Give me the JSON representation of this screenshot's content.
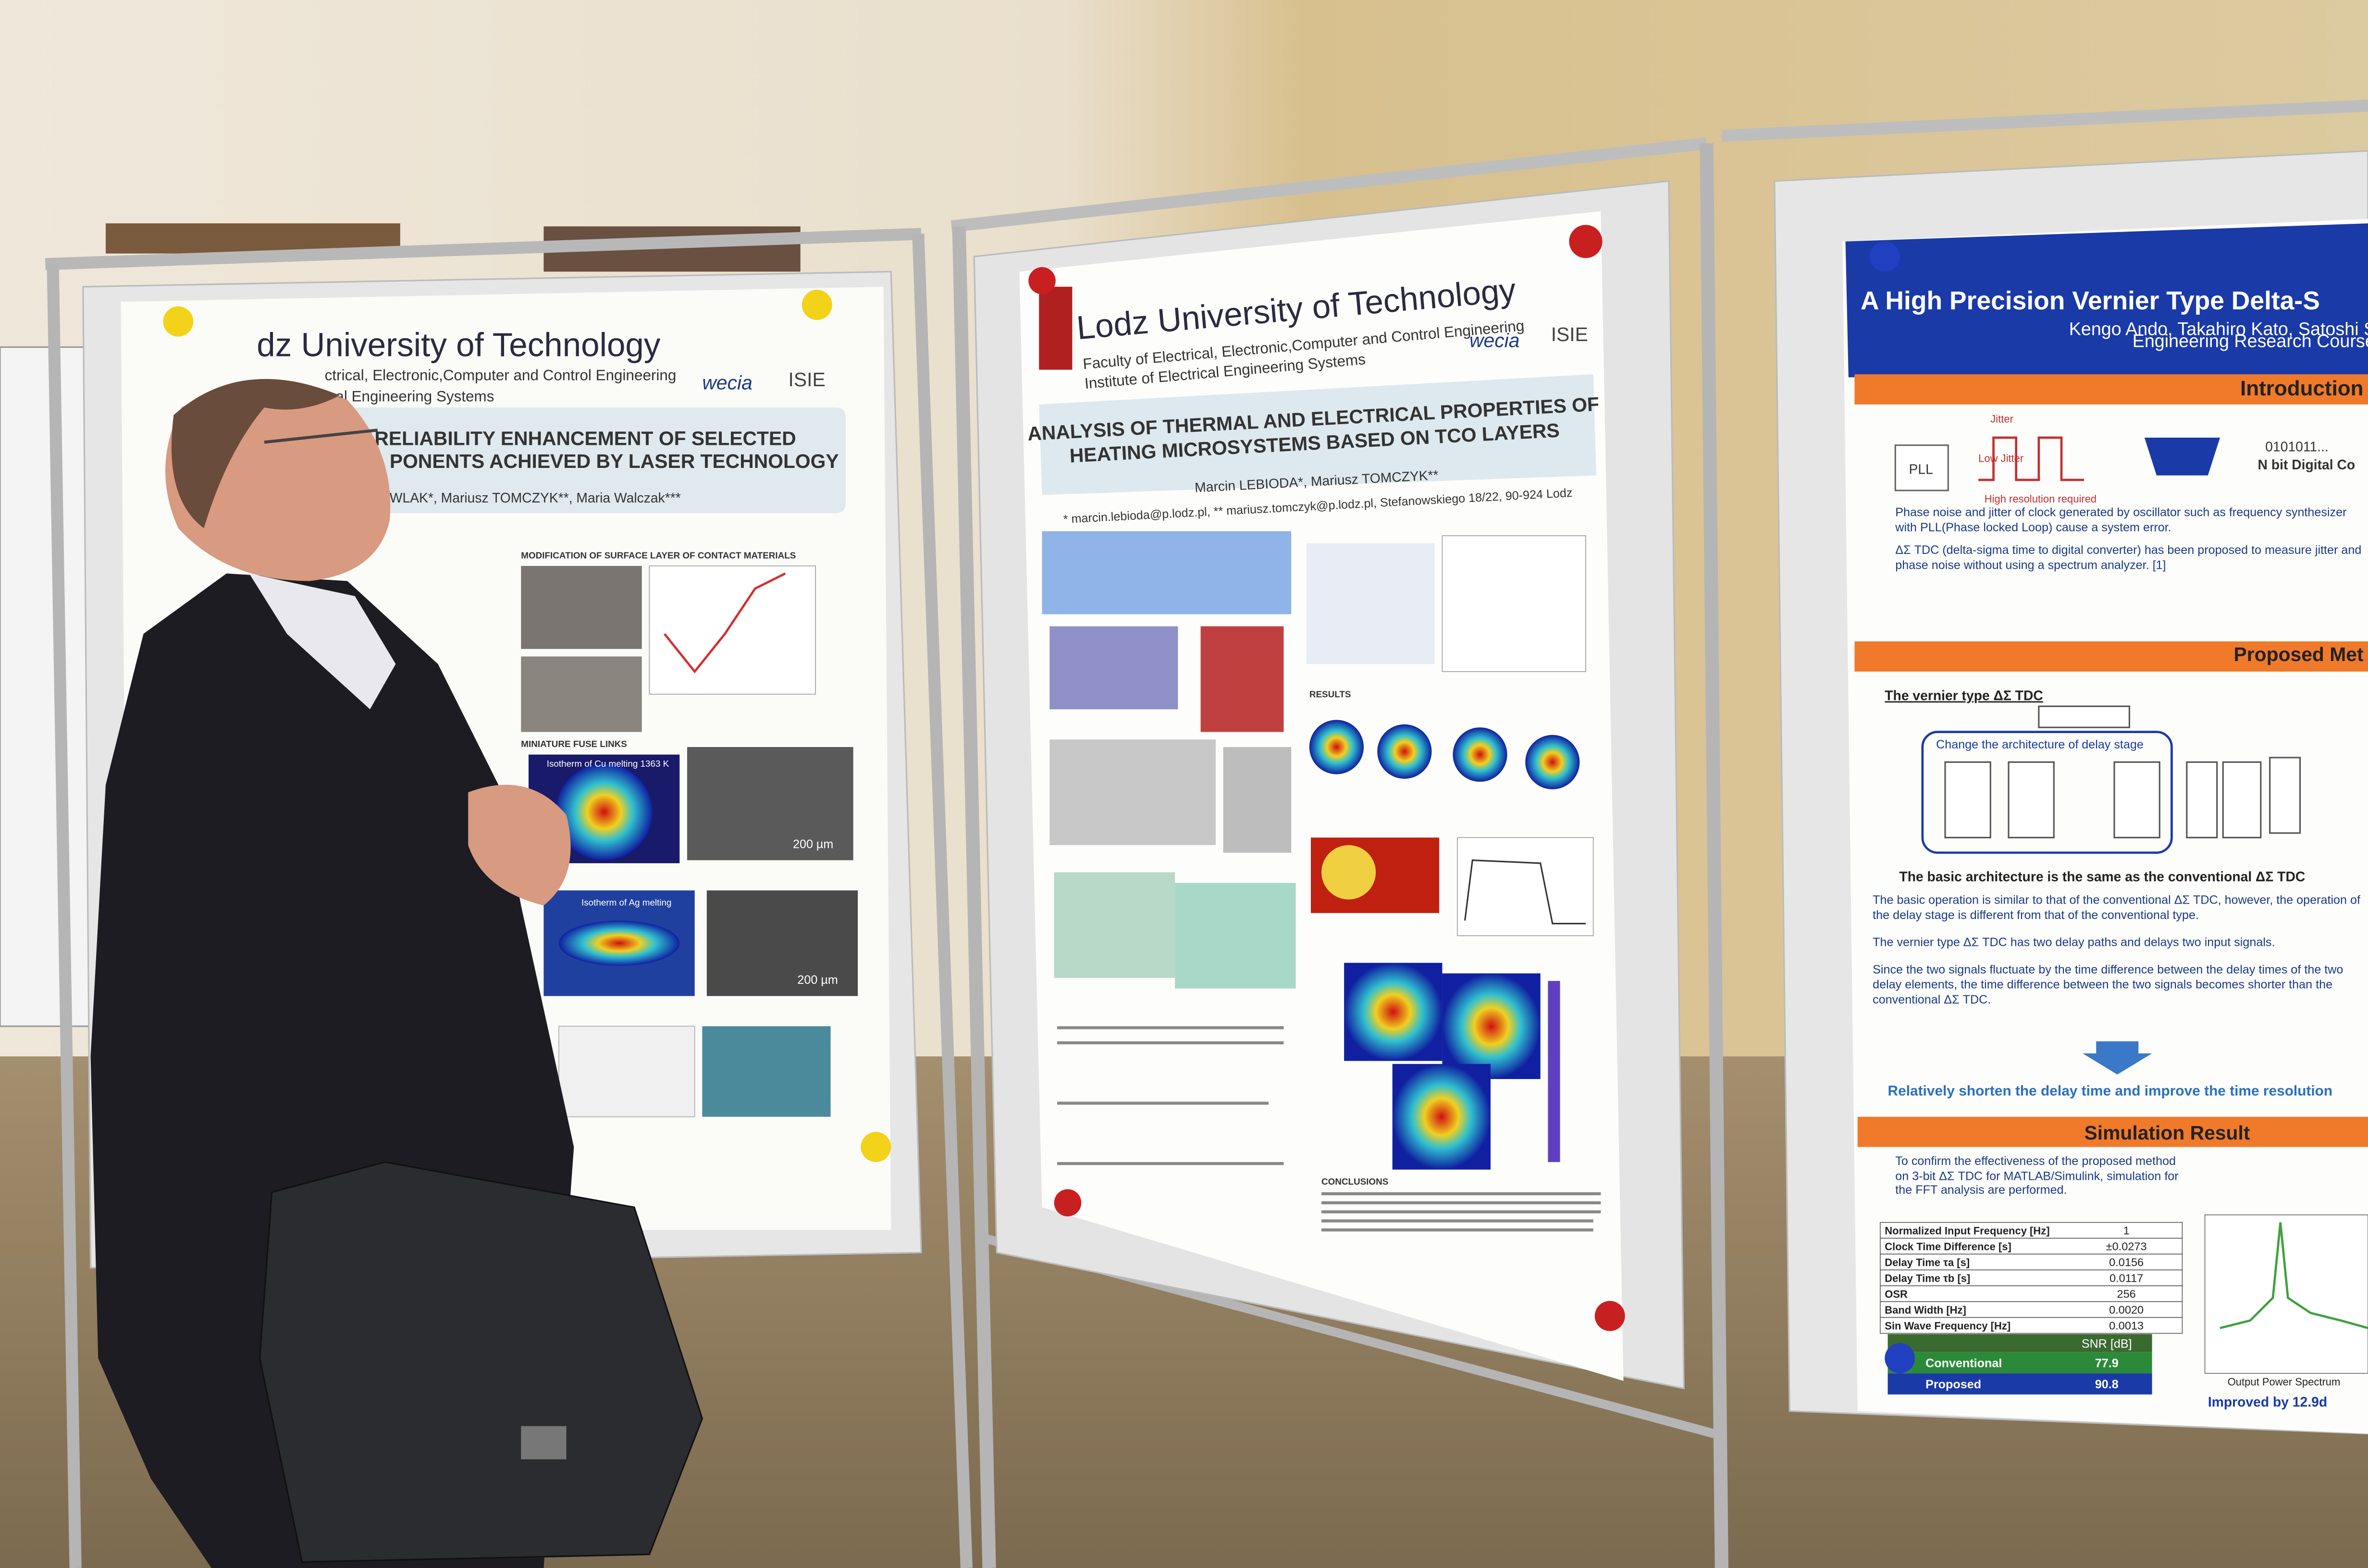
{
  "left_poster": {
    "institution": "dz University of Technology",
    "faculty_lines": [
      "ctrical, Electronic,Computer and Control Engineering",
      "ical Engineering Systems"
    ],
    "logos": [
      "wecia",
      "ISIE"
    ],
    "title_lines": [
      "RELIABILITY ENHANCEMENT OF SELECTED",
      "PONENTS ACHIEVED BY LASER TECHNOLOGY"
    ],
    "authors": "WLAK*, Mariusz TOMCZYK**, Maria Walczak***",
    "sections": [
      "MODIFICATION OF SURFACE LAYER OF CONTACT MATERIALS",
      "MINIATURE FUSE LINKS"
    ],
    "figure_labels": [
      "Isotherm of Cu melting 1363 K",
      "Isotherm of Ag melting",
      "200 µm",
      "200 µm"
    ]
  },
  "middle_poster": {
    "institution": "Lodz University of Technology",
    "faculty_lines": [
      "Faculty of Electrical, Electronic,Computer and Control Engineering",
      "Institute of Electrical Engineering Systems"
    ],
    "logos": [
      "wecia",
      "ISIE"
    ],
    "title_lines": [
      "ANALYSIS OF THERMAL AND ELECTRICAL PROPERTIES OF",
      "HEATING MICROSYSTEMS BASED ON TCO LAYERS"
    ],
    "authors": "Marcin LEBIODA*, Mariusz TOMCZYK**",
    "contact": "* marcin.lebioda@p.lodz.pl, ** mariusz.tomczyk@p.lodz.pl, Stefanowskiego 18/22, 90-924 Lodz",
    "sections": [
      "RESULTS",
      "CONCLUSIONS"
    ]
  },
  "right_poster": {
    "title": "A High Precision Vernier Type Delta-S",
    "authors": "Kengo Ando, Takahiro Kato, Satoshi S",
    "affiliation": "Engineering Research Course",
    "sections": [
      "Introduction",
      "Proposed Met",
      "Simulation Result"
    ],
    "diagram_labels": [
      "PLL",
      "Jitter",
      "Low Jitter",
      "High resolution required",
      "0101011...",
      "N bit Digital Co"
    ],
    "subheading": "The vernier type ΔΣ TDC",
    "arch_label": "Change the architecture of delay stage",
    "arch_caption": "The basic architecture is the same as the conventional ΔΣ TDC",
    "bullets": [
      "Phase noise and jitter of clock generated by oscillator such as frequency synthesizer with PLL(Phase locked Loop) cause a system error.",
      "ΔΣ TDC (delta-sigma time to digital converter) has been proposed to measure jitter and phase noise without using a spectrum analyzer. [1]",
      "The basic operation is similar to that of the conventional ΔΣ TDC, however, the operation of the delay stage is different from that of the conventional type.",
      "The vernier type ΔΣ TDC has two delay paths and delays two input signals.",
      "Since the two signals fluctuate by the time difference between the delay times of the two delay elements, the time difference between the two signals becomes shorter than the conventional ΔΣ TDC."
    ],
    "highlight": "Relatively shorten the delay time and improve the time resolution",
    "sim_text": "To confirm the effectiveness of the proposed method on 3-bit ΔΣ TDC for MATLAB/Simulink, simulation for the FFT analysis are performed.",
    "param_table": [
      [
        "Normalized Input Frequency [Hz]",
        "1"
      ],
      [
        "Clock Time Difference [s]",
        "±0.0273"
      ],
      [
        "Delay Time τa [s]",
        "0.0156"
      ],
      [
        "Delay Time τb [s]",
        "0.0117"
      ],
      [
        "OSR",
        "256"
      ],
      [
        "Band Width [Hz]",
        "0.0020"
      ],
      [
        "Sin Wave Frequency [Hz]",
        "0.0013"
      ]
    ],
    "snr_header": "SNR [dB]",
    "snr_rows": [
      [
        "Conventional",
        "77.9"
      ],
      [
        "Proposed",
        "90.8"
      ]
    ],
    "footer": "Improved by 12.9d",
    "plot_label": "Output Power Spectrum"
  }
}
